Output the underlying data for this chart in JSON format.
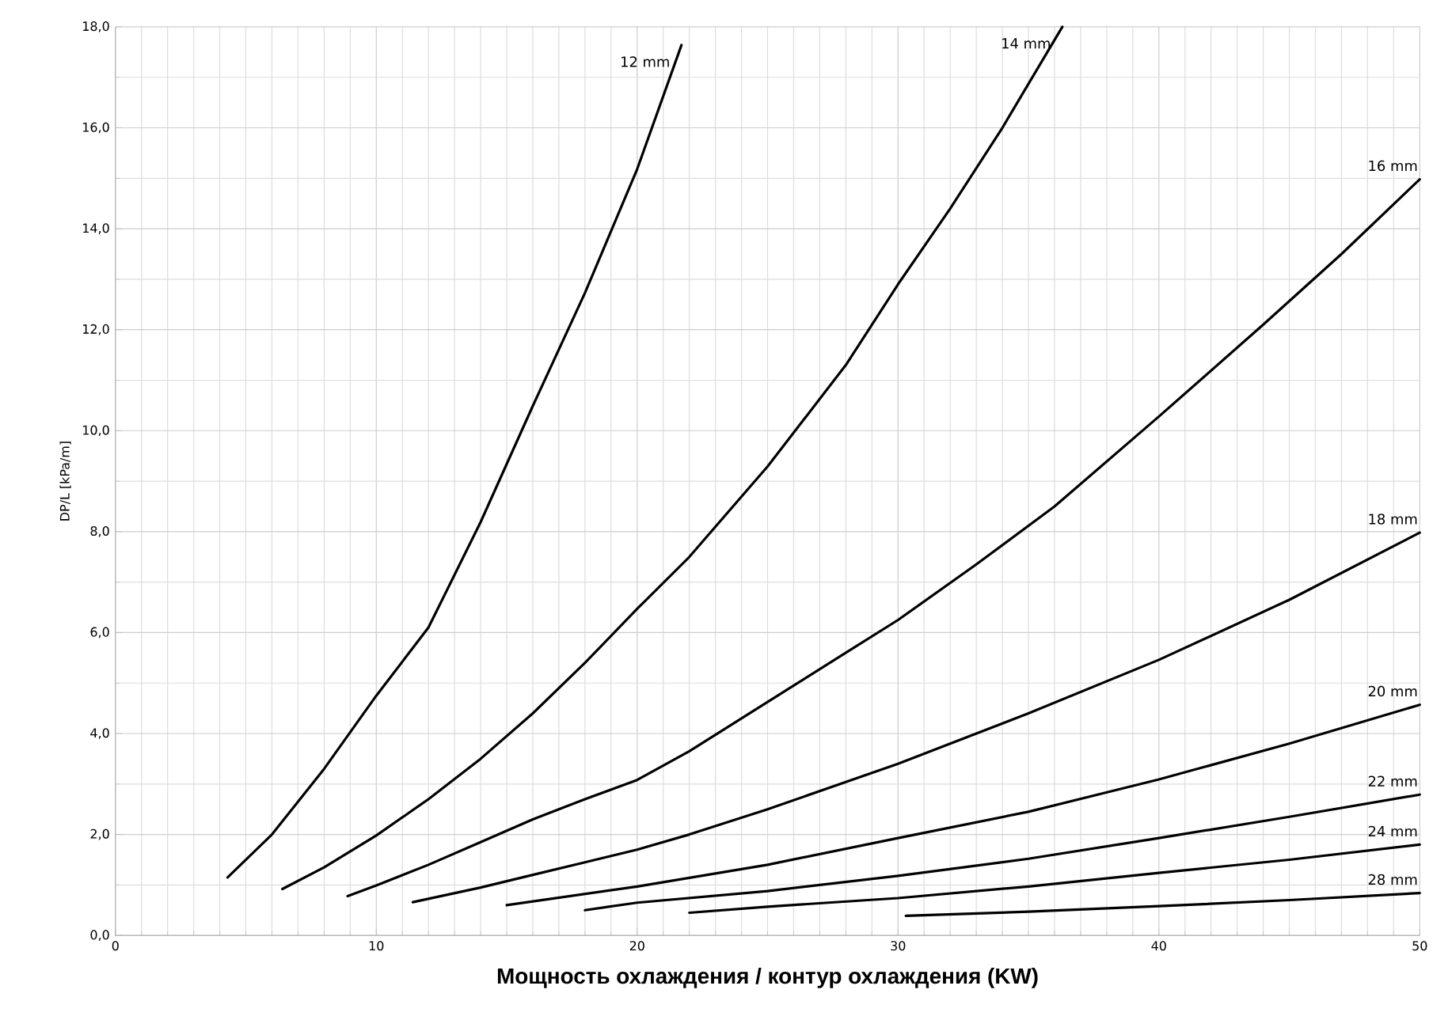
{
  "chart_data": {
    "type": "line",
    "xlabel": "Мощность охлаждения / контур охлаждения (KW)",
    "ylabel": "DP/L [kPa/m]",
    "xlim": [
      0,
      50
    ],
    "ylim": [
      0,
      18
    ],
    "xticks": [
      0,
      10,
      20,
      30,
      40,
      50
    ],
    "yticks": [
      {
        "value": 0,
        "label": "0,0"
      },
      {
        "value": 2,
        "label": "2,0"
      },
      {
        "value": 4,
        "label": "4,0"
      },
      {
        "value": 6,
        "label": "6,0"
      },
      {
        "value": 8,
        "label": "8,0"
      },
      {
        "value": 10,
        "label": "10,0"
      },
      {
        "value": 12,
        "label": "12,0"
      },
      {
        "value": 14,
        "label": "14,0"
      },
      {
        "value": 16,
        "label": "16,0"
      },
      {
        "value": 18,
        "label": "18,0"
      }
    ],
    "grid": true,
    "legend": false,
    "marker": "none",
    "line_style": "solid",
    "series": [
      {
        "name": "12 mm",
        "color": "#000000",
        "x": [
          4.3,
          6,
          8,
          10,
          12,
          14,
          16,
          18,
          20,
          21.7
        ],
        "values": [
          1.15,
          2.0,
          3.3,
          4.75,
          6.1,
          8.19,
          10.49,
          12.73,
          15.18,
          17.64
        ]
      },
      {
        "name": "14 mm",
        "color": "#000000",
        "x": [
          6.4,
          8,
          10,
          12,
          14,
          16,
          18,
          20,
          22,
          25,
          28,
          30,
          32,
          34,
          36.3
        ],
        "values": [
          0.92,
          1.35,
          1.98,
          2.7,
          3.5,
          4.4,
          5.4,
          6.47,
          7.5,
          9.29,
          11.3,
          12.9,
          14.4,
          16.0,
          18.0
        ]
      },
      {
        "name": "16 mm",
        "color": "#000000",
        "x": [
          8.9,
          10,
          12,
          14,
          16,
          18,
          20,
          22,
          24,
          26,
          28,
          30,
          33,
          36,
          40,
          44,
          47,
          50
        ],
        "values": [
          0.78,
          0.99,
          1.4,
          1.85,
          2.3,
          2.7,
          3.08,
          3.65,
          4.3,
          4.95,
          5.6,
          6.25,
          7.35,
          8.5,
          10.28,
          12.1,
          13.5,
          14.98
        ]
      },
      {
        "name": "18 mm",
        "color": "#000000",
        "x": [
          11.4,
          14,
          16,
          18,
          20,
          22,
          25,
          30,
          35,
          40,
          45,
          50
        ],
        "values": [
          0.66,
          0.95,
          1.2,
          1.45,
          1.7,
          2.0,
          2.5,
          3.4,
          4.4,
          5.46,
          6.65,
          7.98
        ]
      },
      {
        "name": "20 mm",
        "color": "#000000",
        "x": [
          15,
          20,
          25,
          30,
          35,
          40,
          45,
          50
        ],
        "values": [
          0.6,
          0.97,
          1.4,
          1.93,
          2.45,
          3.09,
          3.8,
          4.57
        ]
      },
      {
        "name": "22 mm",
        "color": "#000000",
        "x": [
          18,
          20,
          25,
          30,
          35,
          40,
          45,
          50
        ],
        "values": [
          0.5,
          0.65,
          0.88,
          1.18,
          1.52,
          1.93,
          2.35,
          2.79
        ]
      },
      {
        "name": "24 mm",
        "color": "#000000",
        "x": [
          22,
          25,
          30,
          35,
          40,
          45,
          50
        ],
        "values": [
          0.45,
          0.57,
          0.74,
          0.97,
          1.24,
          1.5,
          1.8
        ]
      },
      {
        "name": "28 mm",
        "color": "#000000",
        "x": [
          30.3,
          35,
          40,
          45,
          50
        ],
        "values": [
          0.39,
          0.47,
          0.58,
          0.7,
          0.84
        ]
      }
    ]
  }
}
